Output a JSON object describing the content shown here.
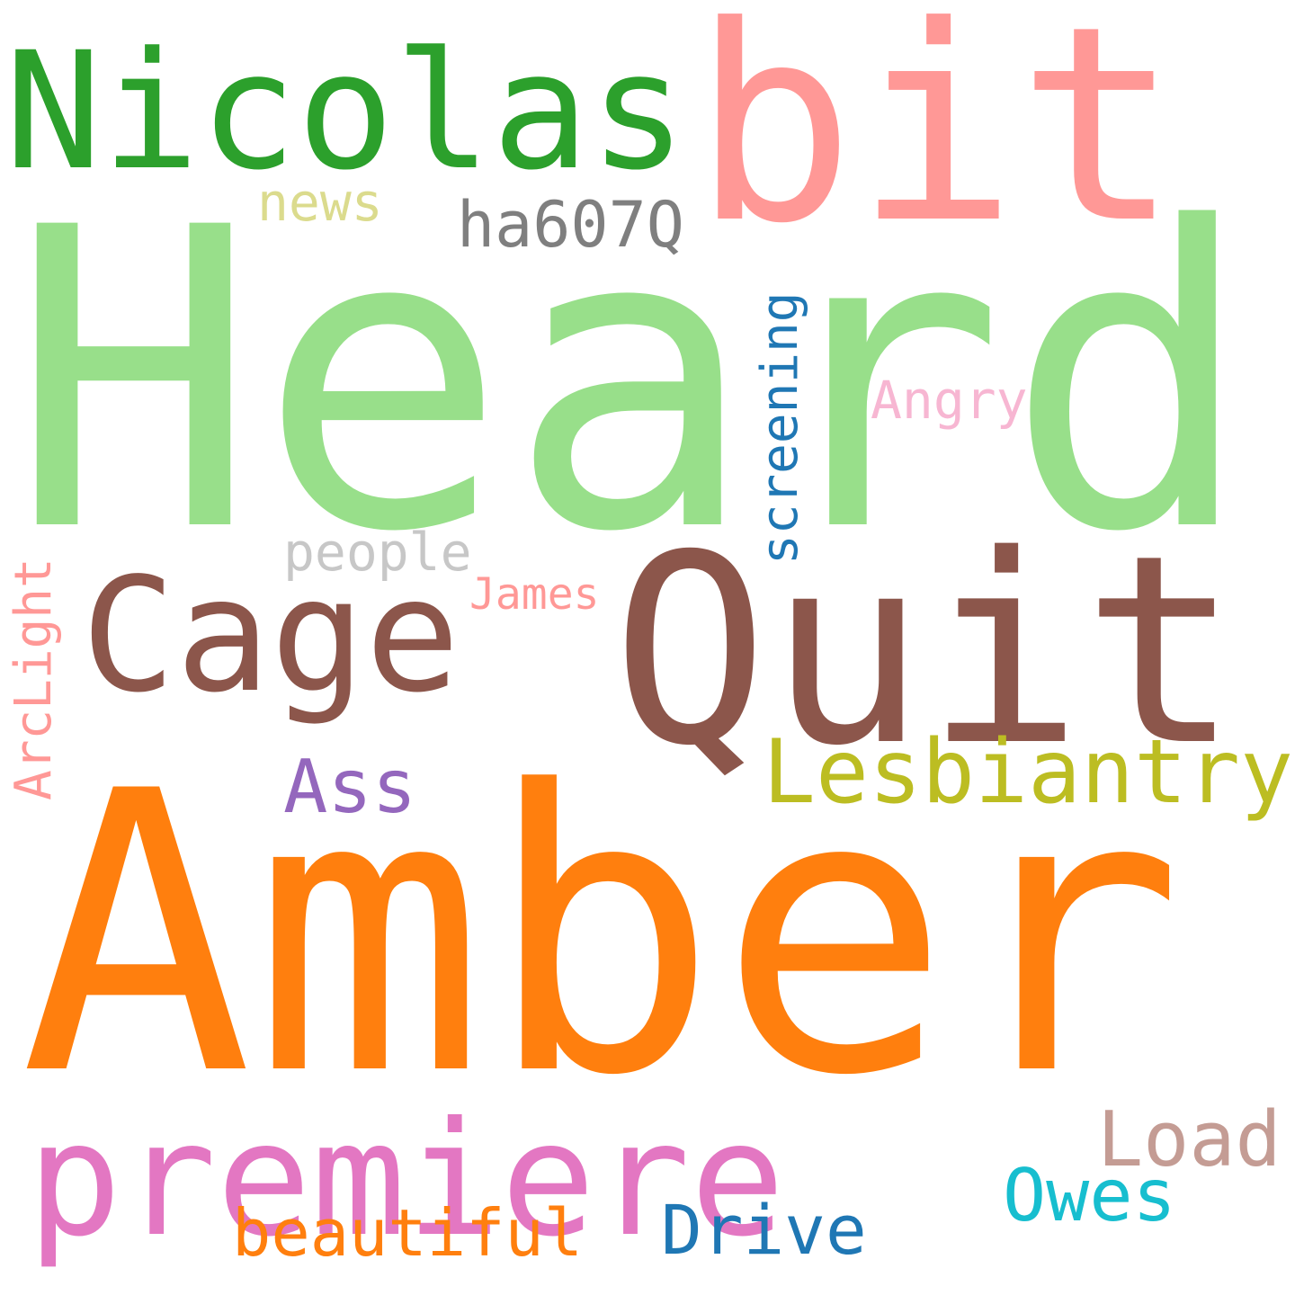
{
  "words": {
    "heard": {
      "text": "Heard",
      "color": "#98df8a"
    },
    "amber": {
      "text": "Amber",
      "color": "#ff7f0e"
    },
    "quit": {
      "text": "Quit",
      "color": "#8c564b"
    },
    "bit": {
      "text": "bit",
      "color": "#ff9896"
    },
    "nicolas": {
      "text": "Nicolas",
      "color": "#2ca02c"
    },
    "premiere": {
      "text": "premiere",
      "color": "#e377c2"
    },
    "cage": {
      "text": "Cage",
      "color": "#8c564b"
    },
    "lesbiantry": {
      "text": "Lesbiantry",
      "color": "#bcbd22"
    },
    "ass": {
      "text": "Ass",
      "color": "#9467bd"
    },
    "load": {
      "text": "Load",
      "color": "#c49c94"
    },
    "owes": {
      "text": "Owes",
      "color": "#17becf"
    },
    "drive": {
      "text": "Drive",
      "color": "#1f77b4"
    },
    "beautiful": {
      "text": "beautiful",
      "color": "#ff7f0e"
    },
    "ha607q": {
      "text": "ha607Q",
      "color": "#7f7f7f"
    },
    "news": {
      "text": "news",
      "color": "#dbdb8d"
    },
    "angry": {
      "text": "Angry",
      "color": "#f7b6d2"
    },
    "people": {
      "text": "people",
      "color": "#c7c7c7"
    },
    "james": {
      "text": "James",
      "color": "#ff9896"
    },
    "screening": {
      "text": "screening",
      "color": "#1f77b4"
    },
    "arclight": {
      "text": "ArcLight",
      "color": "#ff9896"
    }
  }
}
